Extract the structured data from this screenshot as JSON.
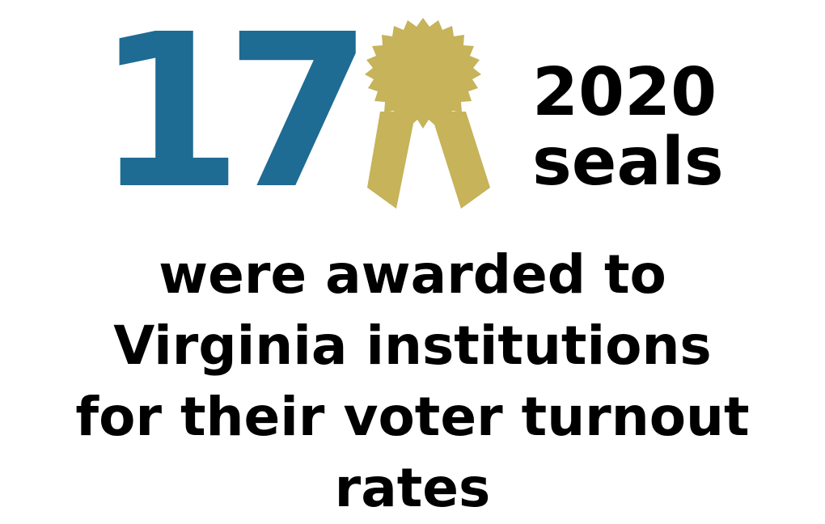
{
  "headline": {
    "count": "17",
    "year": "2020",
    "unit": "seals"
  },
  "caption": {
    "lines": [
      "were awarded to",
      "Virginia institutions",
      "for their voter turnout",
      "rates"
    ]
  },
  "colors": {
    "count": "#1e6b93",
    "seal": "#c6b35a",
    "text": "#000000",
    "background": "#ffffff"
  },
  "icon": {
    "seal": "award-ribbon-icon"
  }
}
